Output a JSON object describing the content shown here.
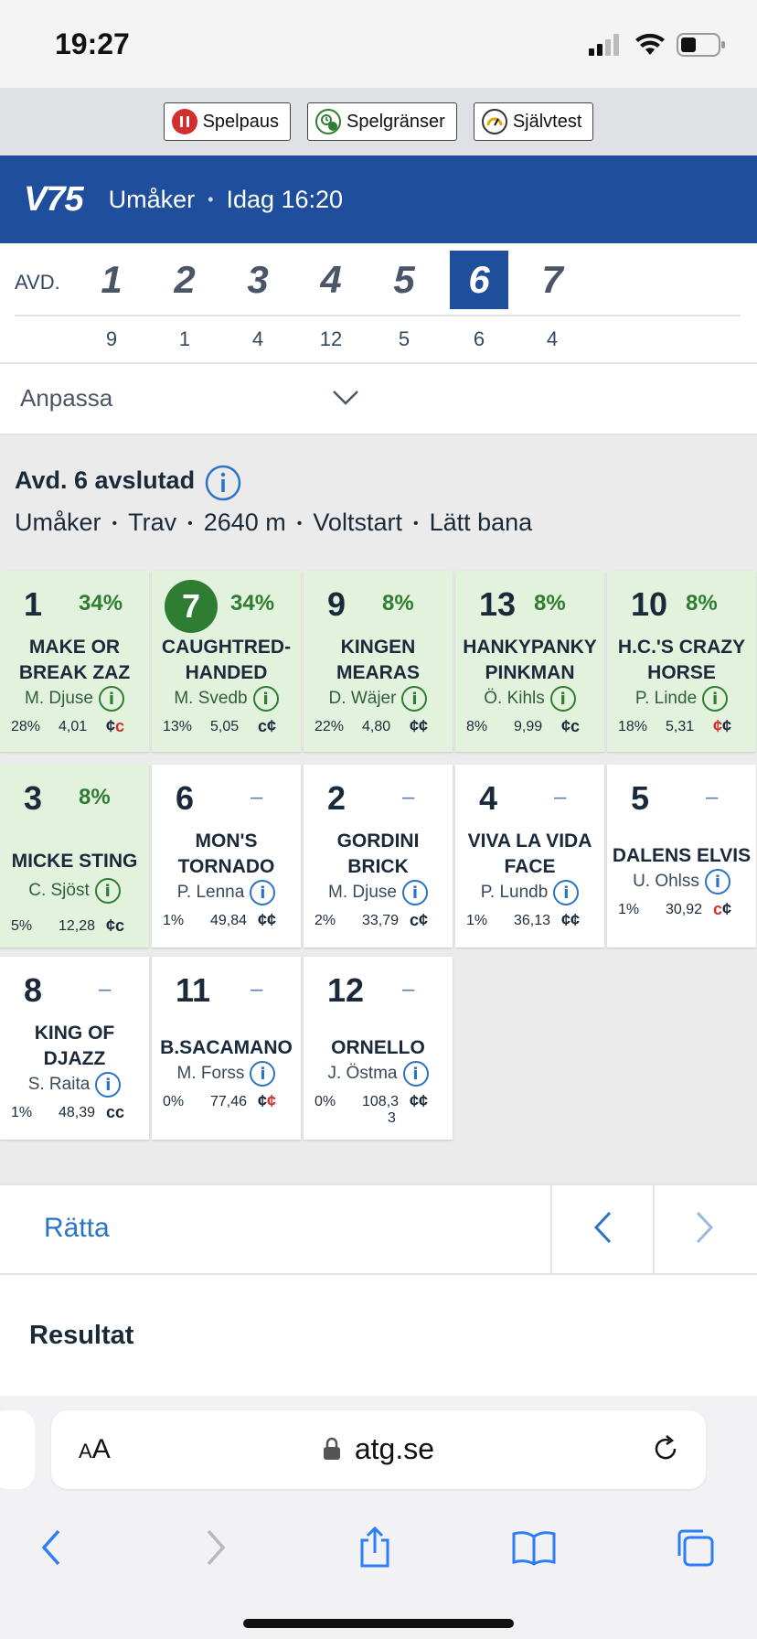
{
  "status": {
    "time": "19:27"
  },
  "responsible_gaming": [
    {
      "label": "Spelpaus",
      "icon": "pause-icon",
      "color": "#d32f2f"
    },
    {
      "label": "Spelgränser",
      "icon": "limits-icon",
      "color": "#2e7d32"
    },
    {
      "label": "Självtest",
      "icon": "gauge-icon",
      "color": "#e0a800"
    }
  ],
  "header": {
    "game": "V75",
    "track": "Umåker",
    "time": "Idag 16:20"
  },
  "avd": {
    "label": "AVD.",
    "races": [
      {
        "num": "1",
        "count": "9"
      },
      {
        "num": "2",
        "count": "1"
      },
      {
        "num": "3",
        "count": "4"
      },
      {
        "num": "4",
        "count": "12"
      },
      {
        "num": "5",
        "count": "5"
      },
      {
        "num": "6",
        "count": "6"
      },
      {
        "num": "7",
        "count": "4"
      }
    ],
    "active": "6"
  },
  "anpassa": {
    "label": "Anpassa"
  },
  "race": {
    "title": "Avd. 6 avslutad",
    "details": [
      "Umåker",
      "Trav",
      "2640 m",
      "Voltstart",
      "Lätt bana"
    ]
  },
  "horses": [
    {
      "num": "1",
      "pct": "34%",
      "name1": "MAKE OR",
      "name2": "BREAK ZAZ",
      "driver": "M. Djuse",
      "s1": "28%",
      "s2": "4,01",
      "s3a": "¢",
      "s3b": "c",
      "s3b_red": true,
      "selected": true
    },
    {
      "num": "7",
      "pct": "34%",
      "name1": "CAUGHTRED-",
      "name2": "HANDED",
      "driver": "M. Svedb",
      "s1": "13%",
      "s2": "5,05",
      "s3a": "c",
      "s3b": "¢",
      "selected": true,
      "winner": true
    },
    {
      "num": "9",
      "pct": "8%",
      "name1": "KINGEN",
      "name2": "MEARAS",
      "driver": "D. Wäjer",
      "s1": "22%",
      "s2": "4,80",
      "s3a": "¢",
      "s3b": "¢",
      "selected": true
    },
    {
      "num": "13",
      "pct": "8%",
      "name1": "HANKYPANKY",
      "name2": "PINKMAN",
      "driver": "Ö. Kihls",
      "s1": "8%",
      "s2": "9,99",
      "s3a": "¢",
      "s3b": "c",
      "selected": true
    },
    {
      "num": "10",
      "pct": "8%",
      "name1": "H.C.'S CRAZY",
      "name2": "HORSE",
      "driver": "P. Linde",
      "s1": "18%",
      "s2": "5,31",
      "s3a": "¢",
      "s3a_red": true,
      "s3b": "¢",
      "selected": true
    },
    {
      "num": "3",
      "pct": "8%",
      "name1": "MICKE STING",
      "name2": "",
      "driver": "C. Sjöst",
      "s1": "5%",
      "s2": "12,28",
      "s3a": "¢",
      "s3b": "c",
      "selected": true
    },
    {
      "num": "6",
      "pct": "–",
      "name1": "MON'S",
      "name2": "TORNADO",
      "driver": "P. Lenna",
      "s1": "1%",
      "s2": "49,84",
      "s3a": "¢",
      "s3b": "¢"
    },
    {
      "num": "2",
      "pct": "–",
      "name1": "GORDINI",
      "name2": "BRICK",
      "driver": "M. Djuse",
      "s1": "2%",
      "s2": "33,79",
      "s3a": "c",
      "s3b": "¢"
    },
    {
      "num": "4",
      "pct": "–",
      "name1": "VIVA LA VIDA",
      "name2": "FACE",
      "driver": "P. Lundb",
      "s1": "1%",
      "s2": "36,13",
      "s3a": "¢",
      "s3b": "¢"
    },
    {
      "num": "5",
      "pct": "–",
      "name1": "DALENS ELVIS",
      "name2": "",
      "driver": "U. Ohlss",
      "s1": "1%",
      "s2": "30,92",
      "s3a": "c",
      "s3a_red": true,
      "s3b": "¢"
    },
    {
      "num": "8",
      "pct": "–",
      "name1": "KING OF",
      "name2": "DJAZZ",
      "driver": "S. Raita",
      "s1": "1%",
      "s2": "48,39",
      "s3a": "c",
      "s3b": "c"
    },
    {
      "num": "11",
      "pct": "–",
      "name1": "B.SACAMANO",
      "name2": "",
      "driver": "M. Forss",
      "s1": "0%",
      "s2": "77,46",
      "s3a": "¢",
      "s3b": "¢",
      "s3b_red": true
    },
    {
      "num": "12",
      "pct": "–",
      "name1": "ORNELLO",
      "name2": "",
      "driver": "J. Östma",
      "s1": "0%",
      "s2": "108,3",
      "s2b": "3",
      "s3a": "¢",
      "s3b": "¢"
    }
  ],
  "nav": {
    "ratta": "Rätta"
  },
  "resultat": {
    "title": "Resultat"
  },
  "browser": {
    "aa_small": "A",
    "aa_big": "A",
    "url": "atg.se"
  }
}
